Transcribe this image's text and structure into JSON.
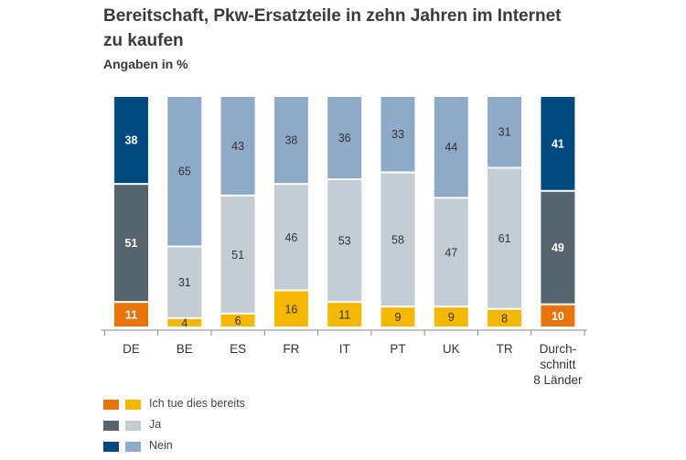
{
  "title": "Bereitschaft, Pkw-Ersatzteile in zehn Jahren im Internet zu kaufen",
  "subtitle": "Angaben in %",
  "colors": {
    "bereits_dark": "#e8750a",
    "bereits_light": "#f4b800",
    "ja_dark": "#56646d",
    "ja_light": "#c3cdd3",
    "nein_dark": "#004a83",
    "nein_light": "#8fa9c8"
  },
  "chart_data": {
    "type": "bar",
    "stacked": true,
    "percent_scale": true,
    "categories": [
      "DE",
      "BE",
      "ES",
      "FR",
      "IT",
      "PT",
      "UK",
      "TR",
      "Durch-\nschnitt\n8 Länder"
    ],
    "highlight_categories": [
      "DE",
      "Durch-\nschnitt\n8 Länder"
    ],
    "series": [
      {
        "name": "Ich tue dies bereits",
        "values": [
          11,
          4,
          6,
          16,
          11,
          9,
          9,
          8,
          10
        ]
      },
      {
        "name": "Ja",
        "values": [
          51,
          31,
          51,
          46,
          53,
          58,
          47,
          61,
          49
        ]
      },
      {
        "name": "Nein",
        "values": [
          38,
          65,
          43,
          38,
          36,
          33,
          44,
          31,
          41
        ]
      }
    ],
    "ylim": [
      0,
      100
    ],
    "legend_position": "bottom-left",
    "grid": false
  },
  "legend": [
    {
      "label": "Ich tue dies bereits",
      "dark": "#e8750a",
      "light": "#f4b800"
    },
    {
      "label": "Ja",
      "dark": "#56646d",
      "light": "#c3cdd3"
    },
    {
      "label": "Nein",
      "dark": "#004a83",
      "light": "#8fa9c8"
    }
  ]
}
